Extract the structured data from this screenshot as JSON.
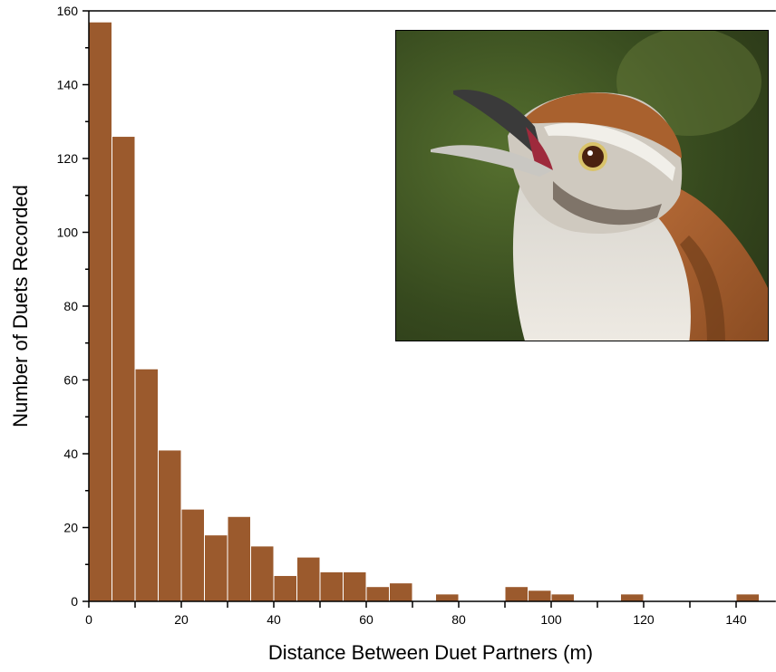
{
  "chart_data": {
    "type": "histogram",
    "xlabel": "Distance Between Duet Partners (m)",
    "ylabel": "Number of Duets Recorded",
    "bins": [
      0,
      5,
      10,
      15,
      20,
      25,
      30,
      35,
      40,
      45,
      50,
      55,
      60,
      65,
      70,
      75,
      80,
      85,
      90,
      95,
      100,
      105,
      110,
      115,
      120,
      125,
      130,
      135,
      140,
      145
    ],
    "values": [
      157,
      126,
      63,
      41,
      25,
      18,
      23,
      15,
      7,
      12,
      8,
      8,
      4,
      5,
      0,
      2,
      0,
      0,
      4,
      3,
      2,
      0,
      0,
      2,
      0,
      0,
      0,
      0,
      2
    ],
    "color": "#9b5a2d",
    "xlim": [
      0,
      148
    ],
    "ylim": [
      0,
      160
    ],
    "xticks": [
      0,
      20,
      40,
      60,
      80,
      100,
      120,
      140
    ],
    "xminorticks": [
      10,
      30,
      50,
      70,
      90,
      110,
      130
    ],
    "yticks": [
      0,
      20,
      40,
      60,
      80,
      100,
      120,
      140,
      160
    ],
    "yminorticks": [
      10,
      30,
      50,
      70,
      90,
      110,
      130,
      150
    ]
  }
}
